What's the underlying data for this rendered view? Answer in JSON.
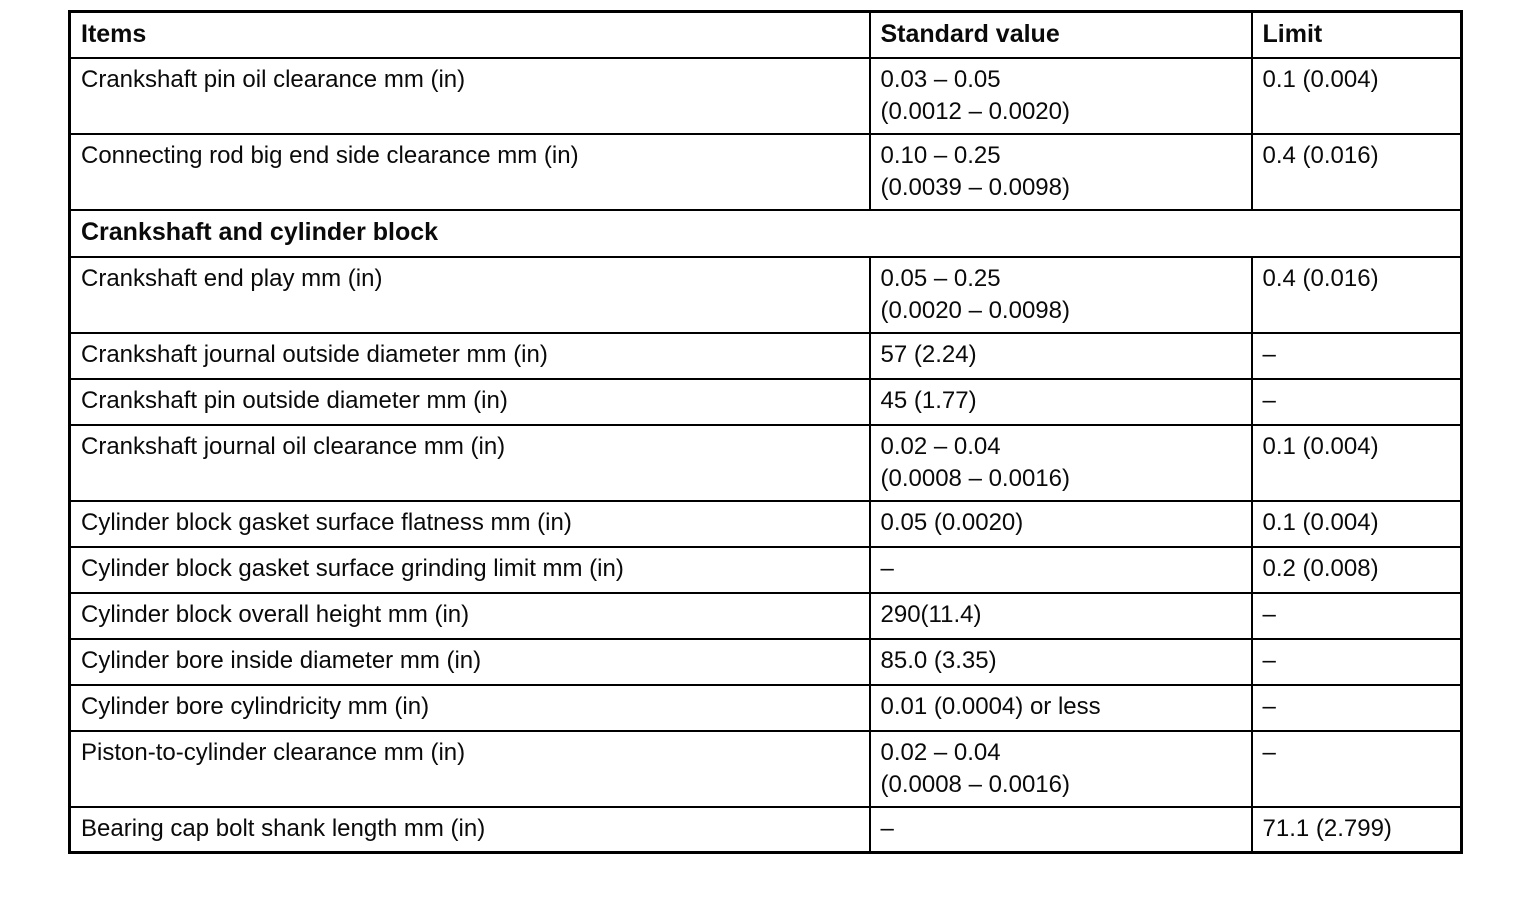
{
  "table": {
    "columns": [
      {
        "key": "item",
        "label": "Items"
      },
      {
        "key": "standard",
        "label": "Standard value"
      },
      {
        "key": "limit",
        "label": "Limit"
      }
    ],
    "rows": [
      {
        "type": "data",
        "item": "Crankshaft pin oil clearance mm (in)",
        "standard": "0.03 – 0.05\n(0.0012 – 0.0020)",
        "limit": "0.1 (0.004)"
      },
      {
        "type": "data",
        "item": "Connecting rod big end side clearance mm (in)",
        "standard": "0.10 – 0.25\n(0.0039 – 0.0098)",
        "limit": "0.4 (0.016)"
      },
      {
        "type": "section",
        "label": "Crankshaft and cylinder block"
      },
      {
        "type": "data",
        "item": "Crankshaft end play mm (in)",
        "standard": "0.05 – 0.25\n(0.0020 – 0.0098)",
        "limit": "0.4 (0.016)"
      },
      {
        "type": "data",
        "item": "Crankshaft journal outside diameter mm (in)",
        "standard": "57 (2.24)",
        "limit": "–"
      },
      {
        "type": "data",
        "item": "Crankshaft pin outside diameter mm (in)",
        "standard": "45 (1.77)",
        "limit": "–"
      },
      {
        "type": "data",
        "item": "Crankshaft journal oil clearance mm (in)",
        "standard": "0.02 – 0.04\n(0.0008 – 0.0016)",
        "limit": "0.1 (0.004)"
      },
      {
        "type": "data",
        "item": "Cylinder block gasket surface flatness mm (in)",
        "standard": "0.05 (0.0020)",
        "limit": "0.1 (0.004)"
      },
      {
        "type": "data",
        "item": "Cylinder block gasket surface grinding limit mm (in)",
        "standard": "–",
        "limit": "0.2 (0.008)"
      },
      {
        "type": "data",
        "item": "Cylinder block overall height mm (in)",
        "standard": "290(11.4)",
        "limit": "–"
      },
      {
        "type": "data",
        "item": "Cylinder bore inside diameter mm (in)",
        "standard": "85.0 (3.35)",
        "limit": "–"
      },
      {
        "type": "data",
        "item": "Cylinder bore cylindricity mm (in)",
        "standard": "0.01 (0.0004) or less",
        "limit": "–"
      },
      {
        "type": "data",
        "item": "Piston-to-cylinder clearance mm (in)",
        "standard": "0.02 – 0.04\n(0.0008 – 0.0016)",
        "limit": "–"
      },
      {
        "type": "data",
        "item": "Bearing cap bolt shank length mm (in)",
        "standard": "–",
        "limit": "71.1 (2.799)"
      }
    ]
  }
}
